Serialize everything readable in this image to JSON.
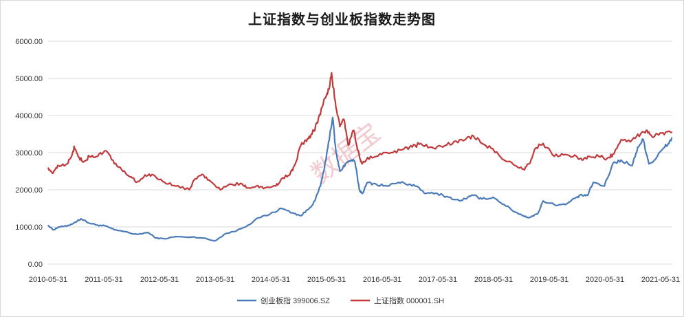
{
  "chart_data": {
    "type": "line",
    "title": "上证指数与创业板指数走势图",
    "xlabel": "",
    "ylabel": "",
    "ylim": [
      0,
      6000
    ],
    "yticks": [
      "6000.00",
      "5000.00",
      "4000.00",
      "3000.00",
      "2000.00",
      "1000.00",
      "0.00"
    ],
    "ytick_values": [
      6000,
      5000,
      4000,
      3000,
      2000,
      1000,
      0
    ],
    "xticks": [
      "2010-05-31",
      "2011-05-31",
      "2012-05-31",
      "2013-05-31",
      "2014-05-31",
      "2015-05-31",
      "2016-05-31",
      "2017-05-31",
      "2018-05-31",
      "2019-05-31",
      "2020-05-31",
      "2021-05-31"
    ],
    "xrange": [
      2010.41,
      2021.62
    ],
    "grid": "horizontal",
    "legend_position": "bottom",
    "series": [
      {
        "name": "创业板指 399006.SZ",
        "color": "#4a7ab8",
        "x": [
          2010.41,
          2010.5,
          2010.6,
          2010.75,
          2010.9,
          2011.0,
          2011.15,
          2011.3,
          2011.45,
          2011.6,
          2011.8,
          2011.95,
          2012.0,
          2012.2,
          2012.35,
          2012.5,
          2012.7,
          2012.95,
          2013.0,
          2013.2,
          2013.4,
          2013.6,
          2013.8,
          2014.0,
          2014.2,
          2014.4,
          2014.6,
          2014.8,
          2014.95,
          2015.1,
          2015.2,
          2015.3,
          2015.4,
          2015.47,
          2015.52,
          2015.58,
          2015.65,
          2015.75,
          2015.85,
          2015.92,
          2016.0,
          2016.05,
          2016.15,
          2016.3,
          2016.5,
          2016.7,
          2016.9,
          2017.0,
          2017.2,
          2017.4,
          2017.6,
          2017.8,
          2017.95,
          2018.05,
          2018.2,
          2018.4,
          2018.6,
          2018.8,
          2018.95,
          2019.05,
          2019.2,
          2019.3,
          2019.5,
          2019.7,
          2019.9,
          2020.0,
          2020.1,
          2020.2,
          2020.4,
          2020.55,
          2020.7,
          2020.9,
          2021.0,
          2021.1,
          2021.2,
          2021.3,
          2021.45,
          2021.55,
          2021.62
        ],
        "y": [
          1050,
          920,
          1000,
          1020,
          1130,
          1220,
          1100,
          1050,
          1020,
          920,
          870,
          810,
          800,
          850,
          700,
          680,
          740,
          720,
          730,
          700,
          620,
          820,
          900,
          1050,
          1250,
          1350,
          1500,
          1380,
          1300,
          1500,
          1700,
          2100,
          2800,
          3500,
          3950,
          3000,
          2500,
          2700,
          2800,
          2750,
          2000,
          1900,
          2200,
          2150,
          2100,
          2200,
          2150,
          2100,
          1900,
          1900,
          1800,
          1700,
          1800,
          1850,
          1750,
          1800,
          1600,
          1400,
          1300,
          1250,
          1350,
          1700,
          1600,
          1600,
          1800,
          1850,
          1850,
          2200,
          2100,
          2700,
          2800,
          2650,
          3150,
          3350,
          2700,
          2800,
          3100,
          3250,
          3400
        ]
      },
      {
        "name": "上证指数 000001.SH",
        "color": "#c0393b",
        "x": [
          2010.41,
          2010.5,
          2010.6,
          2010.75,
          2010.85,
          2010.88,
          2010.95,
          2011.05,
          2011.15,
          2011.3,
          2011.45,
          2011.6,
          2011.75,
          2011.9,
          2012.0,
          2012.15,
          2012.3,
          2012.5,
          2012.7,
          2012.95,
          2013.05,
          2013.2,
          2013.35,
          2013.5,
          2013.7,
          2013.9,
          2014.0,
          2014.15,
          2014.3,
          2014.5,
          2014.6,
          2014.75,
          2014.85,
          2014.95,
          2015.05,
          2015.15,
          2015.25,
          2015.35,
          2015.42,
          2015.45,
          2015.5,
          2015.58,
          2015.65,
          2015.72,
          2015.8,
          2015.9,
          2016.0,
          2016.05,
          2016.2,
          2016.4,
          2016.6,
          2016.8,
          2016.95,
          2017.1,
          2017.3,
          2017.5,
          2017.7,
          2017.9,
          2018.05,
          2018.2,
          2018.4,
          2018.6,
          2018.8,
          2018.95,
          2019.05,
          2019.15,
          2019.3,
          2019.5,
          2019.7,
          2019.9,
          2020.0,
          2020.1,
          2020.3,
          2020.45,
          2020.55,
          2020.7,
          2020.9,
          2021.05,
          2021.15,
          2021.25,
          2021.35,
          2021.5,
          2021.62
        ],
        "y": [
          2600,
          2450,
          2650,
          2700,
          3000,
          3150,
          2900,
          2750,
          2900,
          2900,
          3050,
          2700,
          2500,
          2350,
          2200,
          2400,
          2400,
          2200,
          2100,
          2000,
          2300,
          2400,
          2200,
          2000,
          2150,
          2150,
          2050,
          2100,
          2050,
          2100,
          2300,
          2400,
          2700,
          3200,
          3300,
          3500,
          3800,
          4300,
          4600,
          4700,
          5150,
          4200,
          3700,
          3900,
          3200,
          3600,
          2900,
          2700,
          2900,
          2950,
          3000,
          3100,
          3150,
          3250,
          3150,
          3150,
          3300,
          3350,
          3450,
          3250,
          3100,
          2800,
          2650,
          2550,
          2700,
          3100,
          3250,
          2900,
          2950,
          2900,
          2800,
          2900,
          2900,
          2850,
          2950,
          3350,
          3350,
          3500,
          3600,
          3450,
          3500,
          3550,
          3550
        ]
      }
    ],
    "watermark": "数据宝"
  }
}
